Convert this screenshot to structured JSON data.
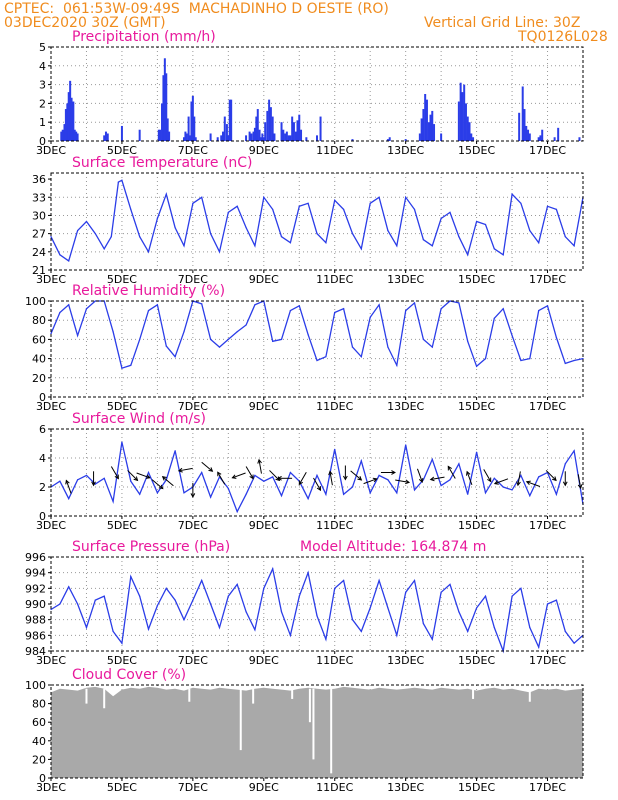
{
  "header": {
    "line1": "CPTEC:  061:53W-09:49S  MACHADINHO D OESTE (RO)",
    "line2_left": "03DEC2020 30Z (GMT)",
    "line2_right": "Vertical Grid Line: 30Z",
    "code": "TQ0126L028"
  },
  "colors": {
    "header": "#f08c1e",
    "title": "#e8199c",
    "series": "#2b3de8",
    "cloud": "#a9a9a9",
    "wind_arrow": "#000000",
    "grid": "#999999"
  },
  "x_axis": {
    "tick_labels": [
      "3DEC",
      "5DEC",
      "7DEC",
      "9DEC",
      "11DEC",
      "13DEC",
      "15DEC",
      "17DEC"
    ],
    "tick_days": [
      3,
      5,
      7,
      9,
      11,
      13,
      15,
      17
    ],
    "range_days": [
      3,
      18
    ],
    "vertical_grid_every_days": 1
  },
  "chart_data": [
    {
      "type": "bar",
      "title": "Precipitation (mm/h)",
      "ylim": [
        0,
        5
      ],
      "yticks": [
        0,
        1,
        2,
        3,
        4,
        5
      ],
      "x": [
        3.29,
        3.33,
        3.38,
        3.42,
        3.46,
        3.5,
        3.54,
        3.58,
        3.63,
        3.67,
        3.71,
        3.75,
        4.5,
        4.55,
        4.6,
        5.0,
        5.5,
        6.04,
        6.08,
        6.13,
        6.17,
        6.21,
        6.25,
        6.29,
        6.33,
        6.75,
        6.79,
        6.83,
        6.88,
        6.92,
        6.96,
        7.0,
        7.04,
        7.08,
        7.5,
        7.7,
        7.8,
        7.85,
        7.9,
        7.96,
        8.0,
        8.04,
        8.08,
        8.5,
        8.6,
        8.65,
        8.71,
        8.75,
        8.79,
        8.83,
        8.88,
        8.92,
        8.96,
        9.0,
        9.04,
        9.1,
        9.15,
        9.2,
        9.25,
        9.3,
        9.5,
        9.55,
        9.6,
        9.65,
        9.7,
        9.75,
        9.8,
        9.85,
        9.9,
        9.95,
        10.0,
        10.05,
        10.2,
        10.5,
        10.6,
        11.5,
        12.5,
        12.55,
        13.0,
        13.4,
        13.45,
        13.5,
        13.55,
        13.6,
        13.65,
        13.7,
        13.75,
        13.8,
        14.0,
        14.5,
        14.55,
        14.6,
        14.65,
        14.7,
        14.75,
        14.8,
        14.85,
        14.9,
        16.2,
        16.3,
        16.35,
        16.4,
        16.45,
        16.5,
        16.75,
        16.8,
        16.85,
        17.2,
        17.3,
        17.9
      ],
      "values": [
        0.5,
        0.6,
        0.9,
        1.7,
        2.0,
        2.6,
        3.2,
        2.3,
        2.1,
        0.6,
        0.5,
        0.4,
        0.3,
        0.5,
        0.4,
        0.8,
        0.6,
        0.6,
        0.6,
        2.0,
        3.5,
        4.4,
        3.6,
        1.2,
        0.5,
        0.2,
        0.5,
        0.4,
        1.3,
        0.3,
        2.1,
        2.4,
        1.3,
        0.2,
        0.4,
        0.2,
        0.3,
        0.5,
        1.3,
        0.9,
        0.3,
        2.2,
        2.2,
        0.3,
        0.5,
        0.4,
        0.5,
        0.7,
        1.3,
        1.7,
        0.6,
        0.2,
        0.4,
        0.2,
        1.0,
        1.6,
        2.2,
        1.8,
        1.3,
        0.4,
        1.0,
        0.6,
        0.4,
        0.5,
        0.3,
        0.3,
        1.3,
        1.0,
        0.5,
        1.1,
        1.4,
        0.6,
        0.2,
        0.3,
        1.3,
        0.1,
        0.1,
        0.2,
        0.1,
        0.4,
        1.2,
        1.7,
        2.5,
        2.2,
        1.0,
        1.4,
        1.6,
        0.9,
        0.4,
        2.1,
        3.1,
        2.6,
        3.0,
        2.0,
        1.3,
        1.0,
        0.4,
        0.2,
        1.5,
        2.9,
        1.7,
        0.8,
        0.6,
        0.4,
        0.2,
        0.3,
        0.6,
        0.2,
        0.7,
        0.2
      ]
    },
    {
      "type": "line",
      "title": "Surface Temperature (nC)",
      "ylim": [
        21,
        37
      ],
      "yticks": [
        21,
        24,
        27,
        30,
        33,
        36
      ],
      "x": [
        3.0,
        3.25,
        3.5,
        3.75,
        4.0,
        4.25,
        4.5,
        4.7,
        4.9,
        5.0,
        5.25,
        5.5,
        5.75,
        6.0,
        6.25,
        6.5,
        6.75,
        7.0,
        7.25,
        7.5,
        7.75,
        8.0,
        8.25,
        8.5,
        8.75,
        9.0,
        9.25,
        9.5,
        9.75,
        10.0,
        10.25,
        10.5,
        10.75,
        11.0,
        11.25,
        11.5,
        11.75,
        12.0,
        12.25,
        12.5,
        12.75,
        13.0,
        13.25,
        13.5,
        13.75,
        14.0,
        14.25,
        14.5,
        14.75,
        15.0,
        15.25,
        15.5,
        15.75,
        16.0,
        16.25,
        16.5,
        16.75,
        17.0,
        17.25,
        17.5,
        17.75,
        18.0
      ],
      "values": [
        26.5,
        23.5,
        22.5,
        27.5,
        29.0,
        27.0,
        24.5,
        26.5,
        35.5,
        35.8,
        31.0,
        26.5,
        24.0,
        29.5,
        33.5,
        28.0,
        25.0,
        32.0,
        33.0,
        27.0,
        24.0,
        30.5,
        31.5,
        28.0,
        25.0,
        33.0,
        31.0,
        26.5,
        25.5,
        31.5,
        32.0,
        27.0,
        25.5,
        32.5,
        31.0,
        27.0,
        24.5,
        32.0,
        33.0,
        27.5,
        25.0,
        33.0,
        31.0,
        26.0,
        25.0,
        29.5,
        30.5,
        26.5,
        23.5,
        29.0,
        28.5,
        24.5,
        23.5,
        33.5,
        32.0,
        27.5,
        25.5,
        31.5,
        31.0,
        26.5,
        25.0,
        33.0
      ]
    },
    {
      "type": "line",
      "title": "Relative Humidity (%)",
      "ylim": [
        0,
        100
      ],
      "yticks": [
        0,
        20,
        40,
        60,
        80,
        100
      ],
      "x": [
        3.0,
        3.25,
        3.5,
        3.75,
        4.0,
        4.25,
        4.5,
        4.75,
        5.0,
        5.25,
        5.5,
        5.75,
        6.0,
        6.25,
        6.5,
        6.75,
        7.0,
        7.25,
        7.5,
        7.75,
        8.0,
        8.25,
        8.5,
        8.75,
        9.0,
        9.25,
        9.5,
        9.75,
        10.0,
        10.25,
        10.5,
        10.75,
        11.0,
        11.25,
        11.5,
        11.75,
        12.0,
        12.25,
        12.5,
        12.75,
        13.0,
        13.25,
        13.5,
        13.75,
        14.0,
        14.25,
        14.5,
        14.75,
        15.0,
        15.25,
        15.5,
        15.75,
        16.0,
        16.25,
        16.5,
        16.75,
        17.0,
        17.25,
        17.5,
        17.75,
        18.0
      ],
      "values": [
        66,
        88,
        96,
        64,
        92,
        100,
        100,
        68,
        30,
        33,
        60,
        90,
        96,
        53,
        42,
        68,
        100,
        97,
        60,
        52,
        60,
        68,
        75,
        96,
        100,
        58,
        60,
        90,
        95,
        65,
        38,
        42,
        88,
        92,
        52,
        42,
        83,
        96,
        52,
        33,
        90,
        98,
        60,
        52,
        92,
        100,
        98,
        58,
        32,
        40,
        82,
        92,
        64,
        38,
        40,
        90,
        95,
        62,
        35,
        38,
        40
      ]
    },
    {
      "type": "line",
      "title": "Surface Wind (m/s)",
      "ylim": [
        0,
        6
      ],
      "yticks": [
        0,
        2,
        4,
        6
      ],
      "x": [
        3.0,
        3.25,
        3.5,
        3.75,
        4.0,
        4.25,
        4.5,
        4.75,
        5.0,
        5.25,
        5.5,
        5.75,
        6.0,
        6.25,
        6.5,
        6.75,
        7.0,
        7.25,
        7.5,
        7.75,
        8.0,
        8.25,
        8.5,
        8.75,
        9.0,
        9.25,
        9.5,
        9.75,
        10.0,
        10.25,
        10.5,
        10.75,
        11.0,
        11.25,
        11.5,
        11.75,
        12.0,
        12.25,
        12.5,
        12.75,
        13.0,
        13.25,
        13.5,
        13.75,
        14.0,
        14.25,
        14.5,
        14.75,
        15.0,
        15.25,
        15.5,
        15.75,
        16.0,
        16.25,
        16.5,
        16.75,
        17.0,
        17.25,
        17.5,
        17.75,
        18.0
      ],
      "values": [
        2.0,
        2.4,
        1.2,
        2.5,
        2.8,
        2.2,
        2.6,
        1.0,
        5.1,
        2.4,
        1.5,
        3.0,
        1.6,
        2.5,
        4.5,
        1.6,
        2.0,
        3.0,
        1.3,
        2.7,
        1.9,
        0.3,
        1.5,
        2.8,
        2.4,
        2.7,
        1.4,
        3.0,
        2.4,
        1.2,
        2.8,
        1.5,
        4.6,
        1.5,
        2.0,
        3.8,
        1.6,
        2.8,
        2.5,
        1.6,
        4.9,
        1.8,
        2.5,
        3.9,
        2.1,
        2.5,
        3.6,
        1.5,
        4.4,
        1.6,
        2.6,
        2.0,
        1.8,
        2.8,
        1.4,
        2.7,
        3.0,
        1.5,
        3.6,
        4.5,
        0.8
      ],
      "arrows_x": [
        3.5,
        4.2,
        4.8,
        5.3,
        5.6,
        6.0,
        6.3,
        6.8,
        7.0,
        7.4,
        7.8,
        8.3,
        8.6,
        8.9,
        9.3,
        9.6,
        10.1,
        10.5,
        10.9,
        11.3,
        11.6,
        12.0,
        12.5,
        12.9,
        13.4,
        13.9,
        14.3,
        14.8,
        15.3,
        15.7,
        16.2,
        16.6,
        17.1,
        17.5,
        17.9
      ],
      "arrows_y": [
        2.0,
        2.6,
        3.0,
        2.8,
        2.8,
        2.2,
        2.4,
        3.2,
        1.8,
        3.4,
        2.6,
        2.8,
        3.0,
        3.4,
        2.8,
        2.6,
        2.6,
        2.2,
        2.6,
        3.0,
        2.8,
        2.4,
        3.0,
        2.4,
        2.8,
        2.6,
        3.0,
        2.6,
        2.8,
        2.4,
        2.6,
        2.2,
        2.8,
        2.6,
        2.4
      ],
      "arrows_dir_deg": [
        110,
        270,
        -60,
        -45,
        -20,
        -40,
        140,
        190,
        -90,
        -40,
        120,
        200,
        -60,
        100,
        -45,
        180,
        -120,
        -60,
        100,
        -90,
        -40,
        20,
        0,
        -10,
        -70,
        190,
        120,
        110,
        -60,
        200,
        -100,
        160,
        -45,
        -90,
        -80
      ]
    },
    {
      "type": "line",
      "title": "Surface Pressure (hPa)",
      "annotation": "Model Altitude: 164.874 m",
      "ylim": [
        984,
        996
      ],
      "yticks": [
        984,
        986,
        988,
        990,
        992,
        994,
        996
      ],
      "x": [
        3.0,
        3.25,
        3.5,
        3.75,
        4.0,
        4.25,
        4.5,
        4.75,
        5.0,
        5.25,
        5.5,
        5.75,
        6.0,
        6.25,
        6.5,
        6.75,
        7.0,
        7.25,
        7.5,
        7.75,
        8.0,
        8.25,
        8.5,
        8.75,
        9.0,
        9.25,
        9.5,
        9.75,
        10.0,
        10.25,
        10.5,
        10.75,
        11.0,
        11.25,
        11.5,
        11.75,
        12.0,
        12.25,
        12.5,
        12.75,
        13.0,
        13.25,
        13.5,
        13.75,
        14.0,
        14.25,
        14.5,
        14.75,
        15.0,
        15.25,
        15.5,
        15.75,
        16.0,
        16.25,
        16.5,
        16.75,
        17.0,
        17.25,
        17.5,
        17.75,
        18.0
      ],
      "values": [
        989.3,
        990.0,
        992.2,
        990.0,
        987.0,
        990.5,
        991.0,
        986.5,
        985.0,
        993.5,
        991.0,
        986.8,
        989.8,
        992.0,
        990.5,
        988.0,
        990.5,
        993.0,
        990.0,
        987.0,
        991.0,
        992.5,
        989.0,
        986.7,
        992.0,
        994.5,
        989.0,
        986.0,
        991.0,
        994.0,
        988.5,
        985.5,
        992.0,
        993.0,
        988.0,
        986.5,
        989.5,
        993.0,
        989.5,
        986.0,
        991.5,
        993.0,
        987.5,
        985.5,
        991.5,
        992.5,
        989.0,
        986.5,
        989.5,
        991.0,
        987.0,
        984.0,
        991.0,
        992.0,
        987.0,
        984.5,
        990.0,
        990.5,
        986.5,
        985.0,
        986.0
      ]
    },
    {
      "type": "area",
      "title": "Cloud Cover (%)",
      "ylim": [
        0,
        100
      ],
      "yticks": [
        0,
        20,
        40,
        60,
        80,
        100
      ],
      "x": [
        3.0,
        3.25,
        3.5,
        3.75,
        4.0,
        4.25,
        4.5,
        4.75,
        5.0,
        5.25,
        5.5,
        5.75,
        6.0,
        6.25,
        6.5,
        6.75,
        7.0,
        7.25,
        7.5,
        7.75,
        8.0,
        8.25,
        8.5,
        8.75,
        9.0,
        9.25,
        9.5,
        9.75,
        10.0,
        10.25,
        10.5,
        10.75,
        11.0,
        11.25,
        11.5,
        11.75,
        12.0,
        12.25,
        12.5,
        12.75,
        13.0,
        13.25,
        13.5,
        13.75,
        14.0,
        14.25,
        14.5,
        14.75,
        15.0,
        15.25,
        15.5,
        15.75,
        16.0,
        16.25,
        16.5,
        16.75,
        17.0,
        17.25,
        17.5,
        17.75,
        18.0
      ],
      "values": [
        92,
        96,
        95,
        94,
        97,
        98,
        96,
        88,
        95,
        97,
        96,
        98,
        97,
        95,
        96,
        94,
        97,
        96,
        95,
        97,
        96,
        95,
        94,
        96,
        97,
        96,
        95,
        94,
        96,
        97,
        96,
        95,
        96,
        98,
        97,
        96,
        95,
        97,
        96,
        95,
        96,
        97,
        96,
        95,
        97,
        96,
        95,
        96,
        94,
        96,
        97,
        95,
        96,
        94,
        92,
        96,
        95,
        96,
        94,
        95,
        96
      ],
      "dips_x": [
        4.0,
        4.5,
        6.9,
        8.35,
        8.7,
        9.8,
        10.3,
        10.4,
        10.9,
        14.9,
        16.5
      ],
      "dips_values": [
        80,
        75,
        82,
        30,
        80,
        85,
        60,
        20,
        5,
        85,
        82
      ]
    }
  ]
}
